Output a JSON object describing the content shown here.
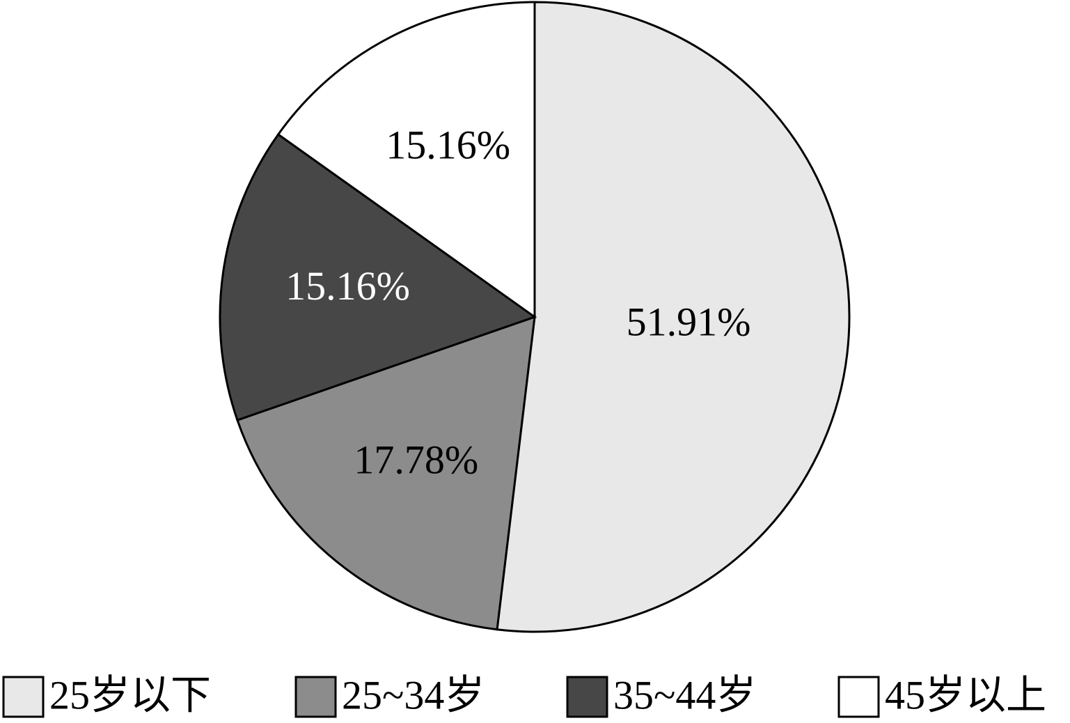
{
  "chart_data": {
    "type": "pie",
    "categories": [
      "25岁以下",
      "25~34岁",
      "35~44岁",
      "45岁以上"
    ],
    "values": [
      51.91,
      17.78,
      15.16,
      15.16
    ],
    "value_labels": [
      "51.91%",
      "17.78%",
      "15.16%",
      "15.16%"
    ],
    "colors": [
      "#e8e8e8",
      "#8c8c8c",
      "#474747",
      "#ffffff"
    ],
    "legend": "bottom"
  }
}
